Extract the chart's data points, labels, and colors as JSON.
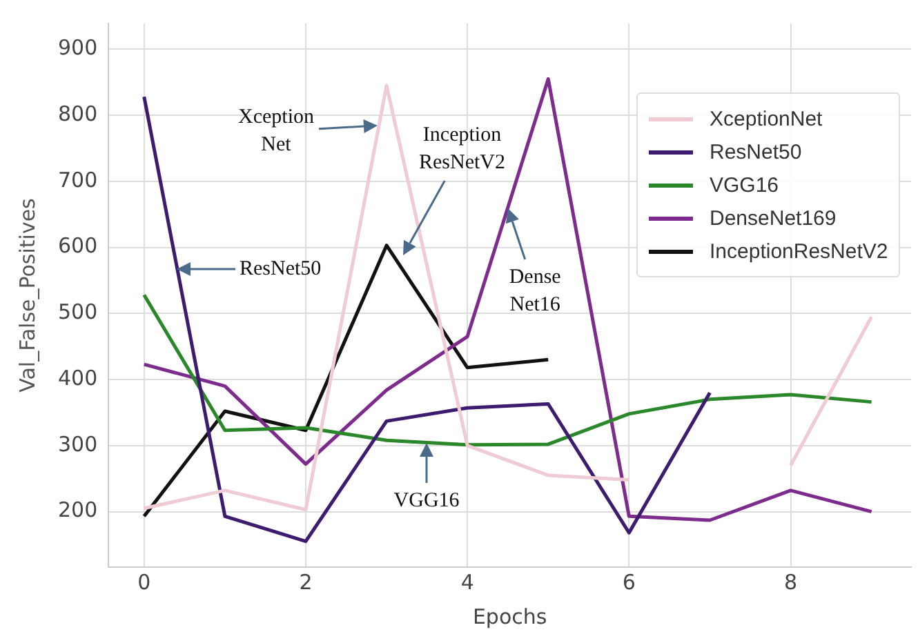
{
  "chart_data": {
    "type": "line",
    "xlabel": "Epochs",
    "ylabel": "Val_False_Positives",
    "x": [
      0,
      1,
      2,
      3,
      4,
      5,
      6,
      7,
      8,
      9
    ],
    "xlim": [
      -0.44,
      9.49
    ],
    "xticks": [
      0,
      2,
      4,
      6,
      8
    ],
    "ylim": [
      116,
      939
    ],
    "yticks": [
      200,
      300,
      400,
      500,
      600,
      700,
      800,
      900
    ],
    "grid": true,
    "legend": "top right",
    "series": [
      {
        "name": "XceptionNet",
        "color": "#efcbd3",
        "values": [
          205,
          232,
          203,
          845,
          300,
          255,
          248,
          null,
          270,
          495
        ]
      },
      {
        "name": "ResNet50",
        "color": "#3d1b6e",
        "values": [
          828,
          193,
          155,
          337,
          357,
          363,
          168,
          380,
          null,
          null
        ]
      },
      {
        "name": "VGG16",
        "color": "#2a882a",
        "values": [
          528,
          323,
          327,
          308,
          301,
          302,
          348,
          370,
          377,
          366
        ]
      },
      {
        "name": "DenseNet169",
        "color": "#7d2b8c",
        "values": [
          423,
          390,
          272,
          384,
          465,
          855,
          193,
          187,
          232,
          200
        ]
      },
      {
        "name": "InceptionResNetV2",
        "color": "#111111",
        "values": [
          193,
          352,
          323,
          603,
          418,
          430,
          null,
          null,
          null,
          null
        ]
      }
    ],
    "annotations": [
      "Xception\nNet",
      "ResNet50",
      "Inception\nResNetV2",
      {
        "text": "Dense\nNet16",
        "x": 4.5,
        "y": 660
      },
      {
        "text": "VGG16",
        "x": 3.5,
        "y": 305
      }
    ]
  }
}
